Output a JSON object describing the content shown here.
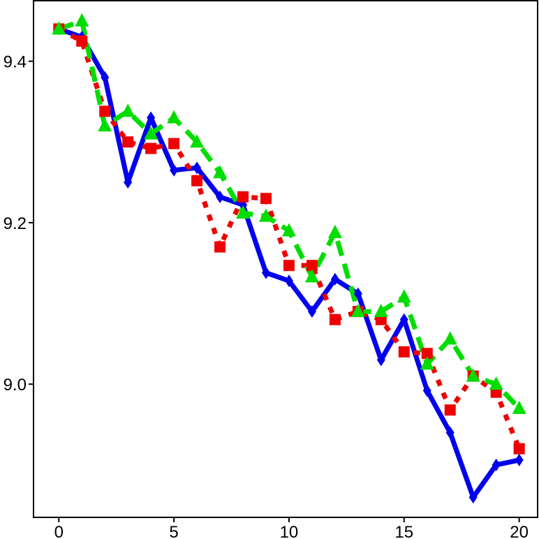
{
  "chart_data": {
    "type": "line",
    "title": "",
    "xlabel": "",
    "ylabel": "",
    "xlim": [
      -1.1,
      20.8
    ],
    "ylim": [
      8.835,
      9.475
    ],
    "x_ticks": [
      0,
      5,
      10,
      15,
      20
    ],
    "x_tick_labels": [
      "0",
      "5",
      "10",
      "15",
      "20"
    ],
    "y_ticks": [
      9.0,
      9.2,
      9.4
    ],
    "y_tick_labels": [
      "9.0",
      "9.2",
      "9.4"
    ],
    "grid": false,
    "legend": "none",
    "series": [
      {
        "color": "#0000ee",
        "line_style": "solid",
        "marker": "diamond",
        "x": [
          0,
          1,
          2,
          3,
          4,
          5,
          6,
          7,
          8,
          9,
          10,
          11,
          12,
          13,
          14,
          15,
          16,
          17,
          18,
          19,
          20
        ],
        "y": [
          9.44,
          9.43,
          9.38,
          9.25,
          9.33,
          9.265,
          9.268,
          9.232,
          9.222,
          9.138,
          9.128,
          9.09,
          9.13,
          9.112,
          9.03,
          9.08,
          8.992,
          8.94,
          8.86,
          8.9,
          8.906
        ]
      },
      {
        "color": "#ee0000",
        "line_style": "dotted",
        "marker": "square",
        "x": [
          0,
          1,
          2,
          3,
          4,
          5,
          6,
          7,
          8,
          9,
          10,
          11,
          12,
          13,
          14,
          15,
          16,
          17,
          18,
          19,
          20
        ],
        "y": [
          9.44,
          9.425,
          9.338,
          9.3,
          9.292,
          9.298,
          9.252,
          9.17,
          9.232,
          9.23,
          9.147,
          9.147,
          9.08,
          9.09,
          9.08,
          9.04,
          9.038,
          8.968,
          9.01,
          8.99,
          8.92
        ]
      },
      {
        "color": "#00dd00",
        "line_style": "dashed",
        "marker": "triangle",
        "x": [
          0,
          1,
          2,
          3,
          4,
          5,
          6,
          7,
          8,
          9,
          10,
          11,
          12,
          13,
          14,
          15,
          16,
          17,
          18,
          19,
          20
        ],
        "y": [
          9.44,
          9.45,
          9.32,
          9.338,
          9.31,
          9.33,
          9.3,
          9.262,
          9.212,
          9.208,
          9.19,
          9.133,
          9.188,
          9.09,
          9.09,
          9.108,
          9.025,
          9.056,
          9.01,
          9.0,
          8.97
        ]
      }
    ]
  }
}
